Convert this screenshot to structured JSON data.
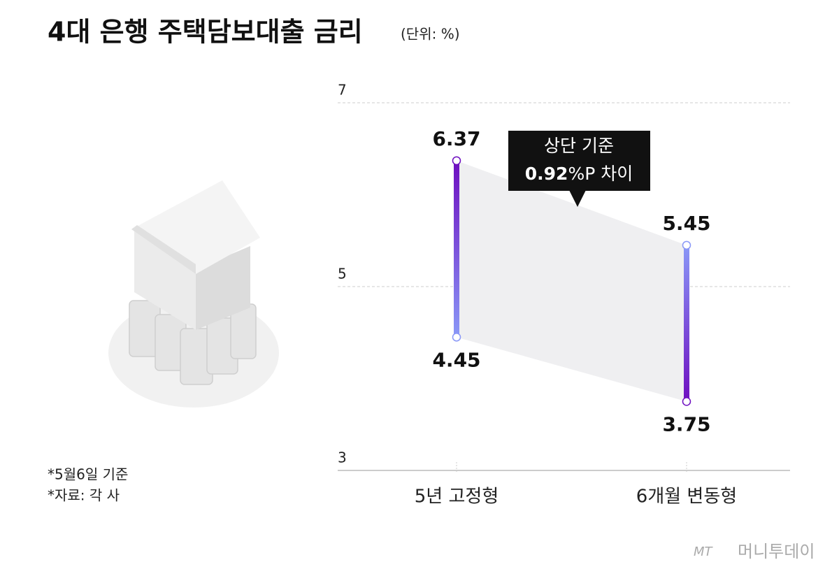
{
  "chart_data": {
    "type": "range",
    "title": "4대 은행 주택담보대출 금리",
    "subtitle": "(단위: %)",
    "categories": [
      "5년 고정형",
      "6개월 변동형"
    ],
    "high": [
      6.37,
      5.45
    ],
    "low": [
      4.45,
      3.75
    ],
    "ylim": [
      3,
      7
    ],
    "yticks": [
      3,
      5,
      7
    ],
    "grid": true,
    "colors": {
      "purple": "#6e0fc0",
      "blue": "#8a98f7",
      "band": "#efeff1"
    },
    "annotation": {
      "line1": "상단 기준",
      "number": "0.92",
      "rest": "%P 차이"
    },
    "notes": [
      "*5월6일 기준",
      "*자료: 각 사"
    ],
    "source_logo": {
      "mark": "MT",
      "name": "머니투데이"
    }
  }
}
